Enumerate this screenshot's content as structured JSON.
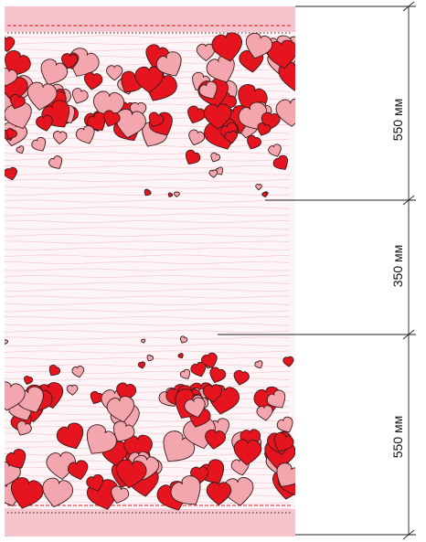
{
  "figure": {
    "colors": {
      "fabric_bg": "#fcf4f6",
      "border_pink": "#f6c4cc",
      "stripe": "#f2b8c0",
      "heart_red": "#e5141e",
      "heart_pink": "#f4a6ae",
      "outline": "#3a1a1a",
      "dim_line": "#222222"
    },
    "dimensions": [
      {
        "label": "550 мм"
      },
      {
        "label": "350 мм"
      },
      {
        "label": "550 мм"
      }
    ]
  }
}
